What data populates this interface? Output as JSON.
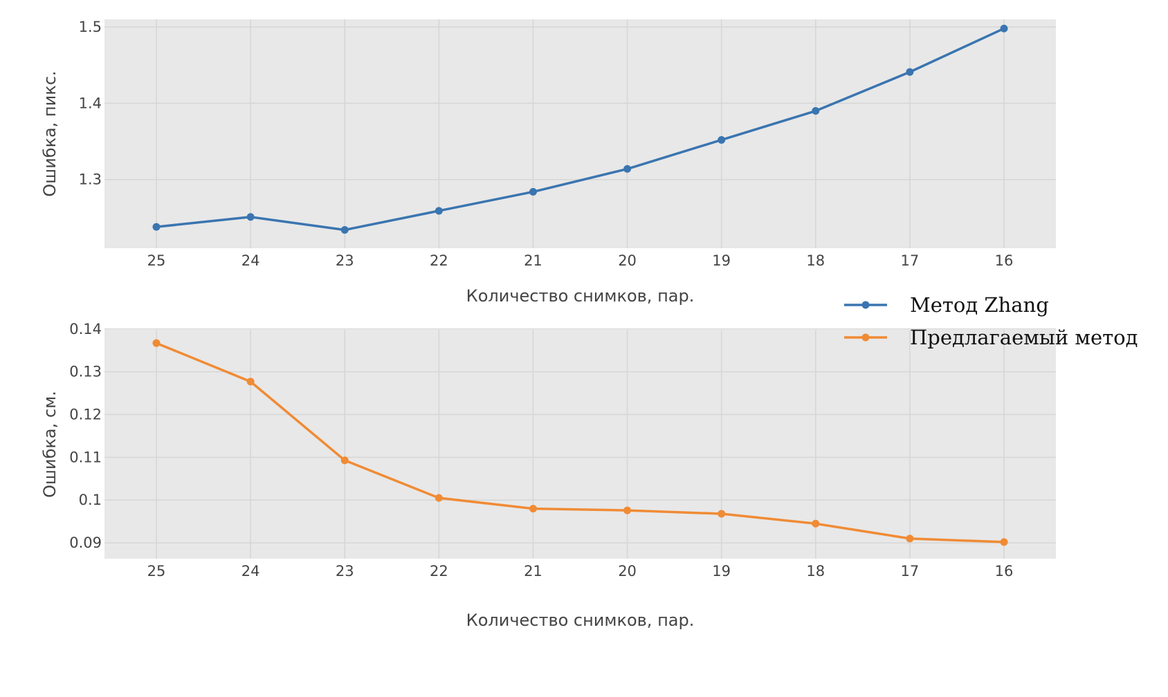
{
  "chart_data": [
    {
      "type": "line",
      "title": "",
      "xlabel": "Количество снимков, пар.",
      "ylabel": "Ошибка, пикс.",
      "categories": [
        "25",
        "24",
        "23",
        "22",
        "21",
        "20",
        "19",
        "18",
        "17",
        "16"
      ],
      "series": [
        {
          "name": "Метод Zhang",
          "values": [
            1.238,
            1.251,
            1.234,
            1.259,
            1.284,
            1.314,
            1.352,
            1.39,
            1.441,
            1.498
          ],
          "color": "#3a75b0"
        }
      ],
      "ylim": [
        1.21,
        1.51
      ],
      "yticks": [
        1.3,
        1.4,
        1.5
      ],
      "ytick_labels": [
        "1.3",
        "1.4",
        "1.5"
      ],
      "grid": true,
      "plot_bg": "#e8e8e8"
    },
    {
      "type": "line",
      "title": "",
      "xlabel": "Количество снимков, пар.",
      "ylabel": "Ошибка, см.",
      "categories": [
        "25",
        "24",
        "23",
        "22",
        "21",
        "20",
        "19",
        "18",
        "17",
        "16"
      ],
      "series": [
        {
          "name": "Предлагаемый метод",
          "values": [
            0.1367,
            0.1277,
            0.1093,
            0.1005,
            0.098,
            0.0976,
            0.0968,
            0.0945,
            0.091,
            0.0902
          ],
          "color": "#f08b35"
        }
      ],
      "ylim": [
        0.0863,
        0.1398
      ],
      "yticks": [
        0.09,
        0.1,
        0.11,
        0.12,
        0.13,
        0.14
      ],
      "ytick_labels": [
        "0.09",
        "0.1",
        "0.11",
        "0.12",
        "0.13",
        "0.14"
      ],
      "grid": true,
      "plot_bg": "#e8e8e8"
    }
  ],
  "legend": {
    "placement": "right, between the two panels",
    "items": [
      {
        "label": "Метод Zhang",
        "color": "#3a75b0"
      },
      {
        "label": "Предлагаемый метод",
        "color": "#f08b35"
      }
    ]
  }
}
